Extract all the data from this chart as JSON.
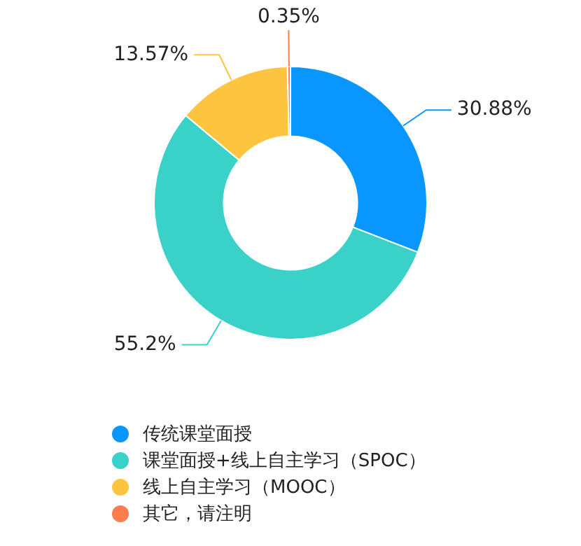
{
  "chart_data": {
    "type": "donut",
    "categories": [
      "传统课堂面授",
      "课堂面授+线上自主学习（SPOC）",
      "线上自主学习（MOOC）",
      "其它，请注明"
    ],
    "values": [
      30.88,
      55.2,
      13.57,
      0.35
    ],
    "colors": [
      "#0a96ff",
      "#3ad1c8",
      "#fdc53f",
      "#ff7d4d"
    ],
    "value_labels": [
      "30.88%",
      "55.2%",
      "13.57%",
      "0.35%"
    ],
    "legend": "bottom"
  }
}
